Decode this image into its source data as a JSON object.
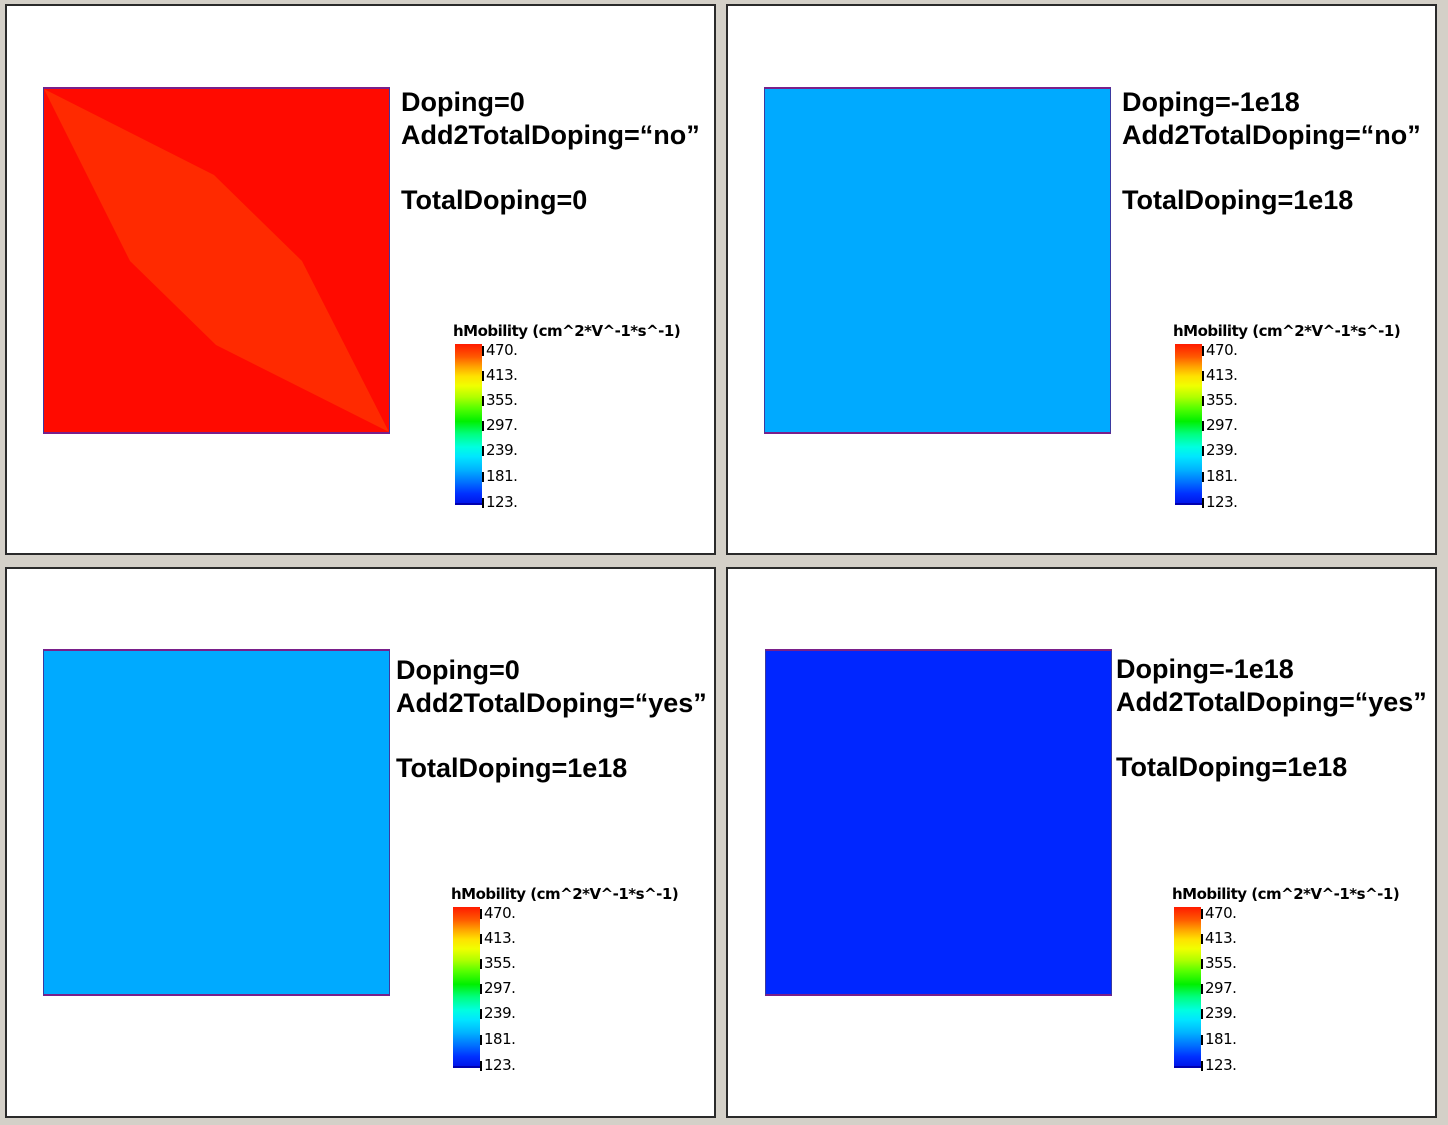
{
  "panels": [
    {
      "doping": "Doping=0",
      "add2": "Add2TotalDoping=“no”",
      "total": "TotalDoping=0",
      "fill_color": "#ff0a00",
      "overlay_color": "#ff2a00"
    },
    {
      "doping": "Doping=-1e18",
      "add2": "Add2TotalDoping=“no”",
      "total": "TotalDoping=1e18",
      "fill_color": "#00aaff"
    },
    {
      "doping": "Doping=0",
      "add2": "Add2TotalDoping=“yes”",
      "total": "TotalDoping=1e18",
      "fill_color": "#00aaff"
    },
    {
      "doping": "Doping=-1e18",
      "add2": "Add2TotalDoping=“yes”",
      "total": "TotalDoping=1e18",
      "fill_color": "#0026ff"
    }
  ],
  "legend": {
    "title": "hMobility (cm^2*V^-1*s^-1)",
    "ticks": [
      "470.",
      "413.",
      "355.",
      "297.",
      "239.",
      "181.",
      "123."
    ]
  }
}
